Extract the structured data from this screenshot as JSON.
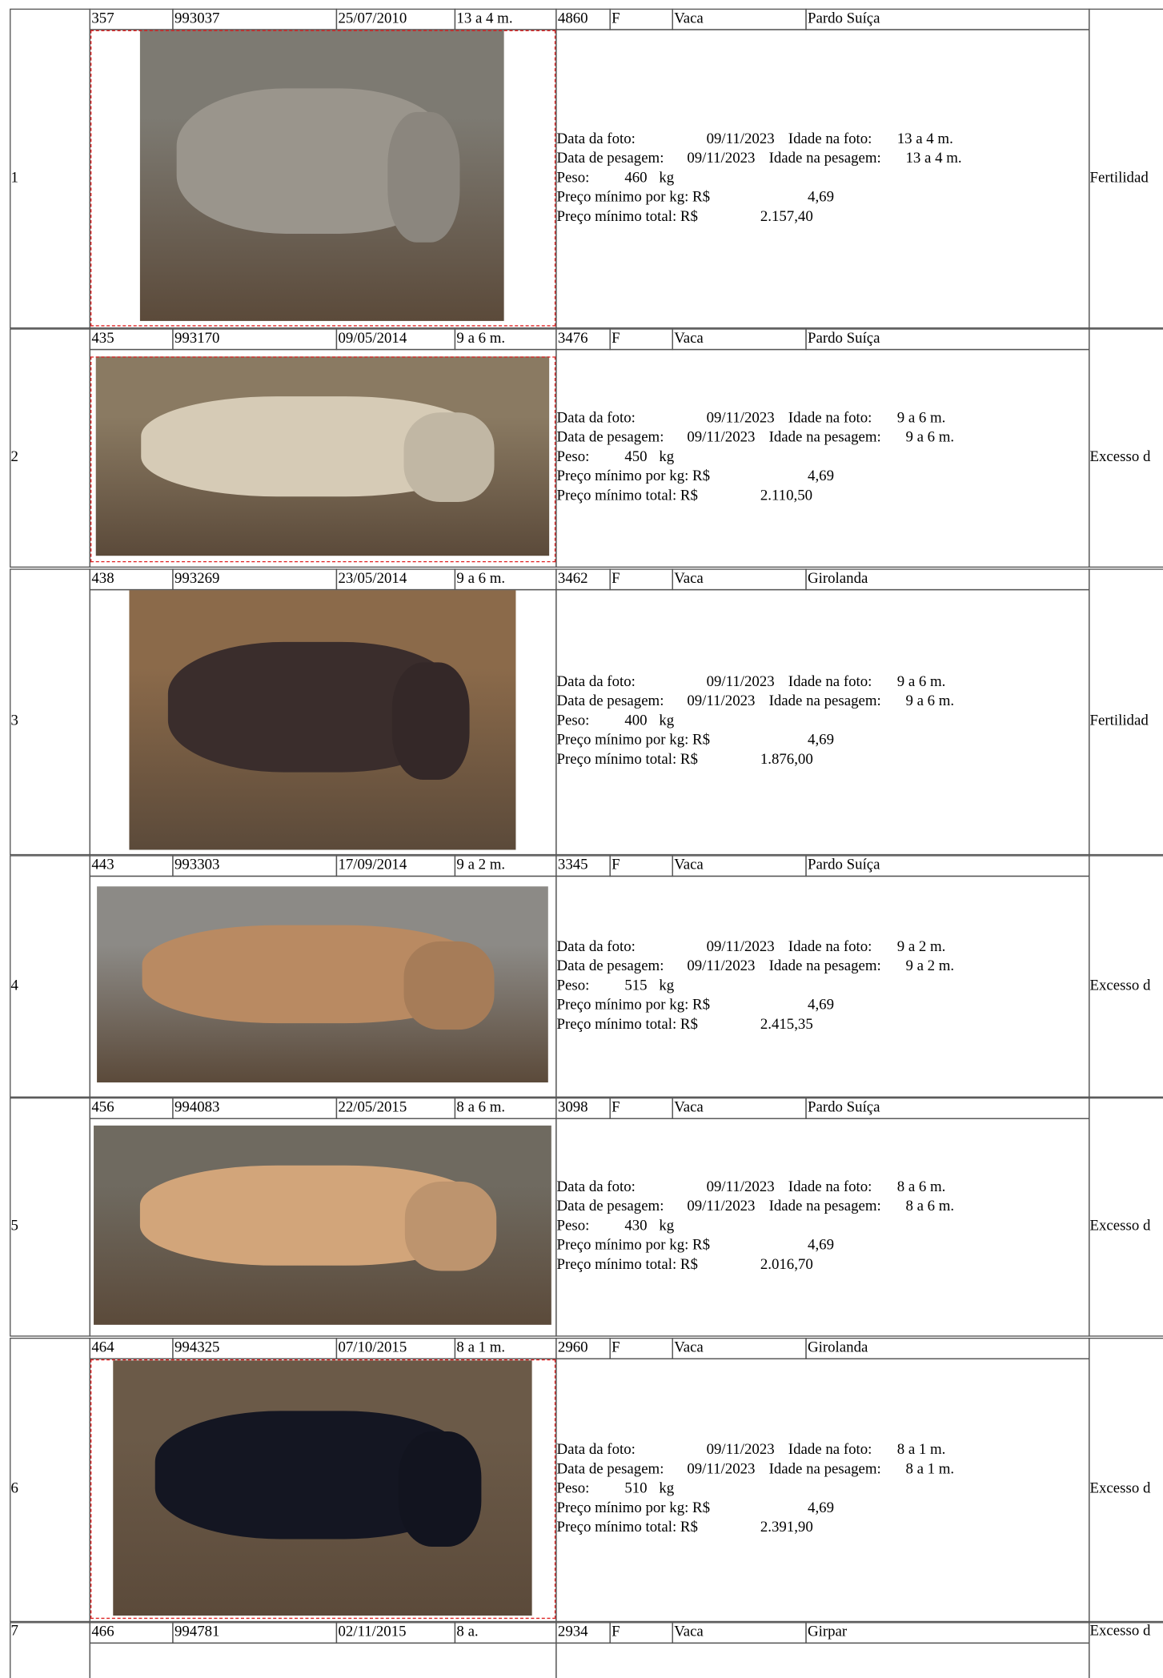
{
  "labels": {
    "data_foto": "Data da foto:",
    "idade_foto": "Idade na foto:",
    "data_pesagem": "Data de pesagem:",
    "idade_pesagem": "Idade na pesagem:",
    "peso": "Peso:",
    "kg": "kg",
    "preco_kg": "Preço mínimo por kg: R$",
    "preco_total": "Preço mínimo total: R$"
  },
  "rows": [
    {
      "index": "1",
      "header": [
        "357",
        "993037",
        "25/07/2010",
        "13 a 4 m.",
        "4860",
        "F",
        "Vaca",
        "Pardo Suíça"
      ],
      "details": {
        "data_foto": "09/11/2023",
        "idade_foto": "13 a 4 m.",
        "data_pesagem": "09/11/2023",
        "idade_pesagem": "13 a 4 m.",
        "peso": "460",
        "preco_kg": "4,69",
        "preco_total": "2.157,40"
      },
      "reason": "Fertilidad"
    },
    {
      "index": "2",
      "header": [
        "435",
        "993170",
        "09/05/2014",
        "9 a 6 m.",
        "3476",
        "F",
        "Vaca",
        "Pardo Suíça"
      ],
      "details": {
        "data_foto": "09/11/2023",
        "idade_foto": "9 a 6 m.",
        "data_pesagem": "09/11/2023",
        "idade_pesagem": "9 a 6 m.",
        "peso": "450",
        "preco_kg": "4,69",
        "preco_total": "2.110,50"
      },
      "reason": "Excesso d"
    },
    {
      "index": "3",
      "header": [
        "438",
        "993269",
        "23/05/2014",
        "9 a 6 m.",
        "3462",
        "F",
        "Vaca",
        "Girolanda"
      ],
      "details": {
        "data_foto": "09/11/2023",
        "idade_foto": "9 a 6 m.",
        "data_pesagem": "09/11/2023",
        "idade_pesagem": "9 a 6 m.",
        "peso": "400",
        "preco_kg": "4,69",
        "preco_total": "1.876,00"
      },
      "reason": "Fertilidad"
    },
    {
      "index": "4",
      "header": [
        "443",
        "993303",
        "17/09/2014",
        "9 a 2 m.",
        "3345",
        "F",
        "Vaca",
        "Pardo Suíça"
      ],
      "details": {
        "data_foto": "09/11/2023",
        "idade_foto": "9 a 2 m.",
        "data_pesagem": "09/11/2023",
        "idade_pesagem": "9 a 2 m.",
        "peso": "515",
        "preco_kg": "4,69",
        "preco_total": "2.415,35"
      },
      "reason": "Excesso d"
    },
    {
      "index": "5",
      "header": [
        "456",
        "994083",
        "22/05/2015",
        "8 a 6 m.",
        "3098",
        "F",
        "Vaca",
        "Pardo Suíça"
      ],
      "details": {
        "data_foto": "09/11/2023",
        "idade_foto": "8 a 6 m.",
        "data_pesagem": "09/11/2023",
        "idade_pesagem": "8 a 6 m.",
        "peso": "430",
        "preco_kg": "4,69",
        "preco_total": "2.016,70"
      },
      "reason": "Excesso d"
    },
    {
      "index": "6",
      "header": [
        "464",
        "994325",
        "07/10/2015",
        "8 a 1 m.",
        "2960",
        "F",
        "Vaca",
        "Girolanda"
      ],
      "details": {
        "data_foto": "09/11/2023",
        "idade_foto": "8 a 1 m.",
        "data_pesagem": "09/11/2023",
        "idade_pesagem": "8 a 1 m.",
        "peso": "510",
        "preco_kg": "4,69",
        "preco_total": "2.391,90"
      },
      "reason": "Excesso d"
    },
    {
      "index": "7",
      "header": [
        "466",
        "994781",
        "02/11/2015",
        "8 a.",
        "2934",
        "F",
        "Vaca",
        "Girpar"
      ],
      "reason": "Excesso d"
    }
  ]
}
